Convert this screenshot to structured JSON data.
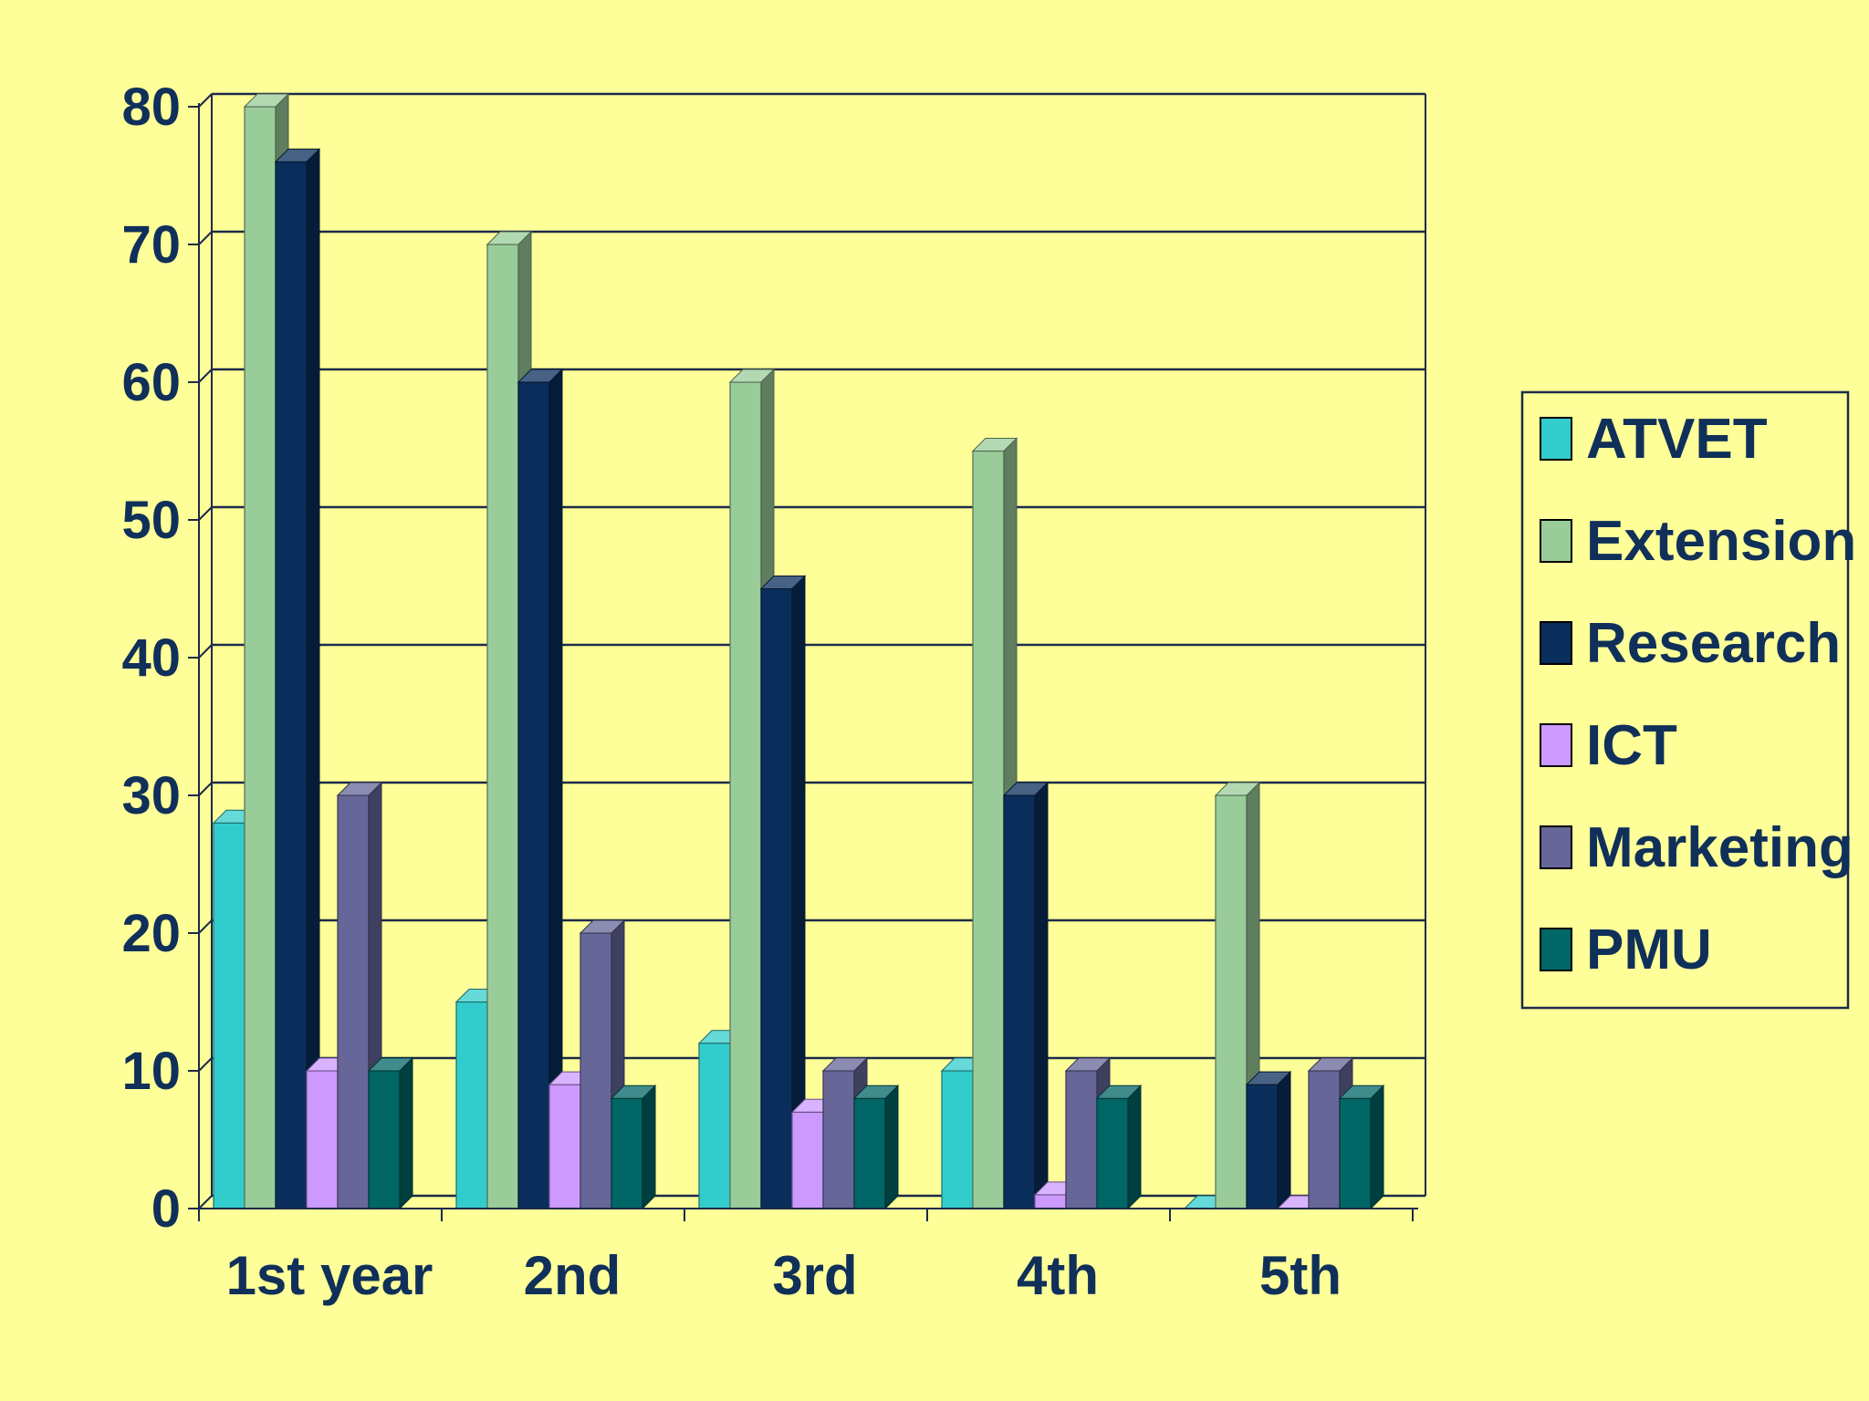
{
  "chart_data": {
    "type": "bar",
    "title": "",
    "xlabel": "",
    "ylabel": "",
    "ylim": [
      0,
      80
    ],
    "yticks": [
      0,
      10,
      20,
      30,
      40,
      50,
      60,
      70,
      80
    ],
    "grid": true,
    "legend_position": "right",
    "categories": [
      "1st year",
      "2nd",
      "3rd",
      "4th",
      "5th"
    ],
    "series": [
      {
        "name": "ATVET",
        "color": "#33CCCC",
        "values": [
          28,
          15,
          12,
          10,
          0
        ]
      },
      {
        "name": "Extension",
        "color": "#99CC99",
        "values": [
          80,
          70,
          60,
          55,
          30
        ]
      },
      {
        "name": "Research",
        "color": "#0A2E5C",
        "values": [
          76,
          60,
          45,
          30,
          9
        ]
      },
      {
        "name": "ICT",
        "color": "#CC99FF",
        "values": [
          10,
          9,
          7,
          1,
          0
        ]
      },
      {
        "name": "Marketing",
        "color": "#666699",
        "values": [
          30,
          20,
          10,
          10,
          10
        ]
      },
      {
        "name": "PMU",
        "color": "#006666",
        "values": [
          10,
          8,
          8,
          8,
          8
        ]
      }
    ]
  },
  "colors": {
    "background": "#FFFF99",
    "axis_text": "#10305A",
    "gridline": "#1B2A4A"
  }
}
